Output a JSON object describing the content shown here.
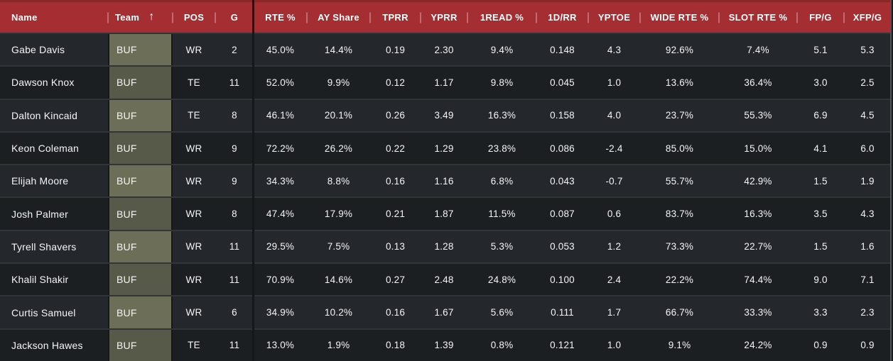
{
  "table": {
    "sort_ascending_glyph": "↑",
    "sorted_column": "team",
    "columns": [
      {
        "key": "name",
        "label": "Name"
      },
      {
        "key": "team",
        "label": "Team"
      },
      {
        "key": "pos",
        "label": "POS"
      },
      {
        "key": "g",
        "label": "G"
      },
      {
        "key": "rte",
        "label": "RTE %"
      },
      {
        "key": "ay",
        "label": "AY Share"
      },
      {
        "key": "tprr",
        "label": "TPRR"
      },
      {
        "key": "yprr",
        "label": "YPRR"
      },
      {
        "key": "read1",
        "label": "1READ %"
      },
      {
        "key": "d1rr",
        "label": "1D/RR"
      },
      {
        "key": "yptoe",
        "label": "YPTOE"
      },
      {
        "key": "wide",
        "label": "WIDE RTE %"
      },
      {
        "key": "slot",
        "label": "SLOT RTE %"
      },
      {
        "key": "fpg",
        "label": "FP/G"
      },
      {
        "key": "xfpg",
        "label": "XFP/G"
      }
    ],
    "rows": [
      {
        "name": "Gabe Davis",
        "team": "BUF",
        "pos": "WR",
        "g": "2",
        "rte": "45.0%",
        "ay": "14.4%",
        "tprr": "0.19",
        "yprr": "2.30",
        "read1": "9.4%",
        "d1rr": "0.148",
        "yptoe": "4.3",
        "wide": "92.6%",
        "slot": "7.4%",
        "fpg": "5.1",
        "xfpg": "5.3"
      },
      {
        "name": "Dawson Knox",
        "team": "BUF",
        "pos": "TE",
        "g": "11",
        "rte": "52.0%",
        "ay": "9.9%",
        "tprr": "0.12",
        "yprr": "1.17",
        "read1": "9.8%",
        "d1rr": "0.045",
        "yptoe": "1.0",
        "wide": "13.6%",
        "slot": "36.4%",
        "fpg": "3.0",
        "xfpg": "2.5"
      },
      {
        "name": "Dalton Kincaid",
        "team": "BUF",
        "pos": "TE",
        "g": "8",
        "rte": "46.1%",
        "ay": "20.1%",
        "tprr": "0.26",
        "yprr": "3.49",
        "read1": "16.3%",
        "d1rr": "0.158",
        "yptoe": "4.0",
        "wide": "23.7%",
        "slot": "55.3%",
        "fpg": "6.9",
        "xfpg": "4.5"
      },
      {
        "name": "Keon Coleman",
        "team": "BUF",
        "pos": "WR",
        "g": "9",
        "rte": "72.2%",
        "ay": "26.2%",
        "tprr": "0.22",
        "yprr": "1.29",
        "read1": "23.8%",
        "d1rr": "0.086",
        "yptoe": "-2.4",
        "wide": "85.0%",
        "slot": "15.0%",
        "fpg": "4.1",
        "xfpg": "6.0"
      },
      {
        "name": "Elijah Moore",
        "team": "BUF",
        "pos": "WR",
        "g": "9",
        "rte": "34.3%",
        "ay": "8.8%",
        "tprr": "0.16",
        "yprr": "1.16",
        "read1": "6.8%",
        "d1rr": "0.043",
        "yptoe": "-0.7",
        "wide": "55.7%",
        "slot": "42.9%",
        "fpg": "1.5",
        "xfpg": "1.9"
      },
      {
        "name": "Josh Palmer",
        "team": "BUF",
        "pos": "WR",
        "g": "8",
        "rte": "47.4%",
        "ay": "17.9%",
        "tprr": "0.21",
        "yprr": "1.87",
        "read1": "11.5%",
        "d1rr": "0.087",
        "yptoe": "0.6",
        "wide": "83.7%",
        "slot": "16.3%",
        "fpg": "3.5",
        "xfpg": "4.3"
      },
      {
        "name": "Tyrell Shavers",
        "team": "BUF",
        "pos": "WR",
        "g": "11",
        "rte": "29.5%",
        "ay": "7.5%",
        "tprr": "0.13",
        "yprr": "1.28",
        "read1": "5.3%",
        "d1rr": "0.053",
        "yptoe": "1.2",
        "wide": "73.3%",
        "slot": "22.7%",
        "fpg": "1.5",
        "xfpg": "1.6"
      },
      {
        "name": "Khalil Shakir",
        "team": "BUF",
        "pos": "WR",
        "g": "11",
        "rte": "70.9%",
        "ay": "14.6%",
        "tprr": "0.27",
        "yprr": "2.48",
        "read1": "24.8%",
        "d1rr": "0.100",
        "yptoe": "2.4",
        "wide": "22.2%",
        "slot": "74.4%",
        "fpg": "9.0",
        "xfpg": "7.1"
      },
      {
        "name": "Curtis Samuel",
        "team": "BUF",
        "pos": "WR",
        "g": "6",
        "rte": "34.9%",
        "ay": "10.2%",
        "tprr": "0.16",
        "yprr": "1.67",
        "read1": "5.6%",
        "d1rr": "0.111",
        "yptoe": "1.7",
        "wide": "66.7%",
        "slot": "33.3%",
        "fpg": "3.3",
        "xfpg": "2.3"
      },
      {
        "name": "Jackson Hawes",
        "team": "BUF",
        "pos": "TE",
        "g": "11",
        "rte": "13.0%",
        "ay": "1.9%",
        "tprr": "0.18",
        "yprr": "1.39",
        "read1": "0.8%",
        "d1rr": "0.121",
        "yptoe": "1.0",
        "wide": "9.1%",
        "slot": "24.2%",
        "fpg": "0.9",
        "xfpg": "0.9"
      }
    ]
  },
  "colors": {
    "header_background": "#a42e31",
    "header_text": "#ffffff",
    "row_background_light": "#24272b",
    "row_background_dark": "#1c1f22",
    "team_cell_light": "#6c6e58",
    "team_cell_dark": "#575a48",
    "body_text": "#f4f5f6"
  }
}
